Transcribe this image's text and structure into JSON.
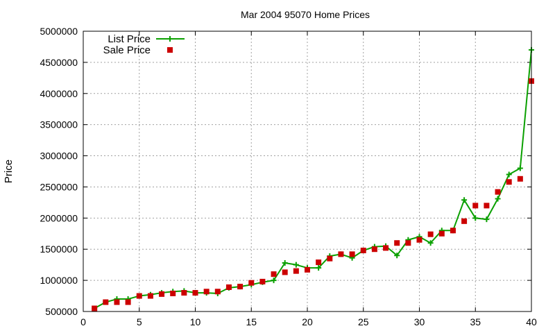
{
  "chart_data": {
    "type": "line",
    "title": "Mar 2004 95070 Home Prices",
    "xlabel": "",
    "ylabel": "Price",
    "xlim": [
      0,
      40
    ],
    "ylim": [
      500000,
      5000000
    ],
    "xticks": [
      0,
      5,
      10,
      15,
      20,
      25,
      30,
      35,
      40
    ],
    "yticks": [
      500000,
      1000000,
      1500000,
      2000000,
      2500000,
      3000000,
      3500000,
      4000000,
      4500000,
      5000000
    ],
    "grid": true,
    "legend_position": "top-left",
    "series": [
      {
        "name": "List Price",
        "style": "line-plus",
        "color": "#0aa000",
        "x": [
          1,
          2,
          3,
          4,
          5,
          6,
          7,
          8,
          9,
          10,
          11,
          12,
          13,
          14,
          15,
          16,
          17,
          18,
          19,
          20,
          21,
          22,
          23,
          24,
          25,
          26,
          27,
          28,
          29,
          30,
          31,
          32,
          33,
          34,
          35,
          36,
          37,
          38,
          39,
          40
        ],
        "values": [
          550000,
          650000,
          700000,
          700000,
          750000,
          770000,
          800000,
          820000,
          830000,
          800000,
          800000,
          790000,
          880000,
          900000,
          930000,
          970000,
          1000000,
          1280000,
          1250000,
          1200000,
          1200000,
          1390000,
          1420000,
          1360000,
          1480000,
          1540000,
          1550000,
          1400000,
          1650000,
          1700000,
          1600000,
          1800000,
          1800000,
          2290000,
          2000000,
          1980000,
          2310000,
          2700000,
          2800000,
          4700000
        ]
      },
      {
        "name": "Sale Price",
        "style": "square-marker",
        "color": "#cc0000",
        "x": [
          1,
          2,
          3,
          4,
          5,
          6,
          7,
          8,
          9,
          10,
          11,
          12,
          13,
          14,
          15,
          16,
          17,
          18,
          19,
          20,
          21,
          22,
          23,
          24,
          25,
          26,
          27,
          28,
          29,
          30,
          31,
          32,
          33,
          34,
          35,
          36,
          37,
          38,
          39,
          40
        ],
        "values": [
          550000,
          650000,
          650000,
          650000,
          750000,
          750000,
          780000,
          790000,
          800000,
          800000,
          820000,
          820000,
          890000,
          900000,
          960000,
          980000,
          1100000,
          1130000,
          1150000,
          1170000,
          1290000,
          1350000,
          1420000,
          1420000,
          1480000,
          1500000,
          1520000,
          1600000,
          1600000,
          1650000,
          1740000,
          1750000,
          1800000,
          1950000,
          2200000,
          2200000,
          2420000,
          2580000,
          2630000,
          4200000
        ]
      }
    ]
  }
}
